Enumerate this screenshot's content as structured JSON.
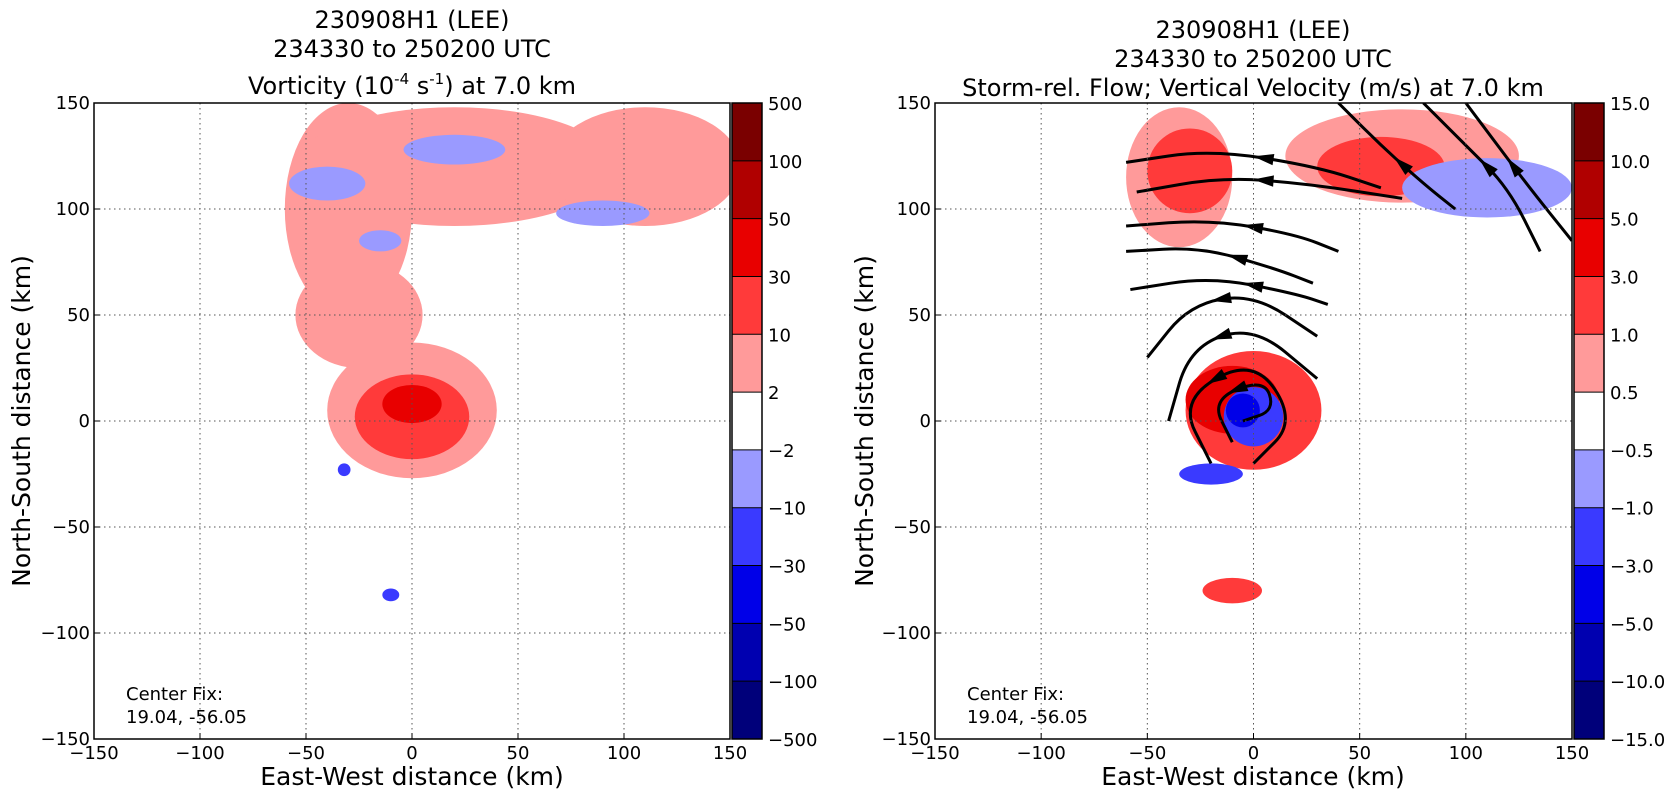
{
  "panels": [
    {
      "title_line1": "230908H1 (LEE)",
      "title_line2": "234330 to 250200 UTC",
      "title_line3_pre": "Vorticity (10",
      "title_line3_sup1": "-4",
      "title_line3_mid": " s",
      "title_line3_sup2": "-1",
      "title_line3_post": ") at 7.0 km",
      "xlabel": "East-West distance (km)",
      "ylabel": "North-South distance (km)",
      "annotation_line1": "Center Fix:",
      "annotation_line2": "19.04, -56.05",
      "colorbar_labels": [
        "500",
        "100",
        "50",
        "30",
        "10",
        "2",
        "−2",
        "−10",
        "−30",
        "−50",
        "−100",
        "−500"
      ]
    },
    {
      "title_line1": "230908H1 (LEE)",
      "title_line2": "234330 to 250200 UTC",
      "title_line3": "Storm-rel. Flow; Vertical Velocity (m/s) at 7.0 km",
      "xlabel": "East-West distance (km)",
      "ylabel": "North-South distance (km)",
      "annotation_line1": "Center Fix:",
      "annotation_line2": "19.04, -56.05",
      "colorbar_labels": [
        "15.0",
        "10.0",
        "5.0",
        "3.0",
        "1.0",
        "0.5",
        "−0.5",
        "−1.0",
        "−3.0",
        "−5.0",
        "−10.0",
        "−15.0"
      ]
    }
  ],
  "colorbar_colors": [
    "#7a0000",
    "#b00000",
    "#e80000",
    "#ff3a3a",
    "#ff9a9a",
    "#ffffff",
    "#9a9aff",
    "#3a3aff",
    "#0000e8",
    "#0000b0",
    "#00007a"
  ],
  "chart_data": [
    {
      "type": "heatmap",
      "title": "230908H1 (LEE) 234330 to 250200 UTC Vorticity (10^-4 s^-1) at 7.0 km",
      "xlabel": "East-West distance (km)",
      "ylabel": "North-South distance (km)",
      "xlim": [
        -150,
        150
      ],
      "ylim": [
        -150,
        150
      ],
      "xticks": [
        "−150",
        "−100",
        "−50",
        "0",
        "50",
        "100",
        "150"
      ],
      "yticks": [
        "−150",
        "−100",
        "−50",
        "0",
        "50",
        "100",
        "150"
      ],
      "grid": true,
      "levels": [
        -500,
        -100,
        -50,
        -30,
        -10,
        -2,
        2,
        10,
        30,
        50,
        100,
        500
      ],
      "center": [
        0,
        5
      ],
      "features": [
        {
          "label": "light-red",
          "level": 1,
          "cx": -30,
          "cy": 100,
          "rx": 30,
          "ry": 50
        },
        {
          "label": "light-red",
          "level": 1,
          "cx": 20,
          "cy": 120,
          "rx": 75,
          "ry": 28
        },
        {
          "label": "light-red",
          "level": 1,
          "cx": 110,
          "cy": 120,
          "rx": 45,
          "ry": 28
        },
        {
          "label": "light-red",
          "level": 1,
          "cx": -25,
          "cy": 50,
          "rx": 30,
          "ry": 25
        },
        {
          "label": "light-red",
          "level": 1,
          "cx": 0,
          "cy": 5,
          "rx": 40,
          "ry": 32
        },
        {
          "label": "mid-red",
          "level": 2,
          "cx": 0,
          "cy": 2,
          "rx": 27,
          "ry": 20
        },
        {
          "label": "strong-red",
          "level": 3,
          "cx": 0,
          "cy": 8,
          "rx": 14,
          "ry": 9
        },
        {
          "label": "light-blue",
          "level": -1,
          "cx": 20,
          "cy": 128,
          "rx": 24,
          "ry": 7
        },
        {
          "label": "light-blue",
          "level": -1,
          "cx": -40,
          "cy": 112,
          "rx": 18,
          "ry": 8
        },
        {
          "label": "light-blue",
          "level": -1,
          "cx": 90,
          "cy": 98,
          "rx": 22,
          "ry": 6
        },
        {
          "label": "light-blue",
          "level": -1,
          "cx": -15,
          "cy": 85,
          "rx": 10,
          "ry": 5
        },
        {
          "label": "mid-blue",
          "level": -2,
          "cx": -10,
          "cy": -82,
          "rx": 4,
          "ry": 3
        },
        {
          "label": "mid-blue",
          "level": -2,
          "cx": -32,
          "cy": -23,
          "rx": 3,
          "ry": 3
        }
      ]
    },
    {
      "type": "heatmap",
      "title": "230908H1 (LEE) 234330 to 250200 UTC Storm-rel. Flow; Vertical Velocity (m/s) at 7.0 km",
      "xlabel": "East-West distance (km)",
      "ylabel": "North-South distance (km)",
      "xlim": [
        -150,
        150
      ],
      "ylim": [
        -150,
        150
      ],
      "xticks": [
        "−150",
        "−100",
        "−50",
        "0",
        "50",
        "100",
        "150"
      ],
      "yticks": [
        "−150",
        "−100",
        "−50",
        "0",
        "50",
        "100",
        "150"
      ],
      "grid": true,
      "levels": [
        -15.0,
        -10.0,
        -5.0,
        -3.0,
        -1.0,
        -0.5,
        0.5,
        1.0,
        3.0,
        5.0,
        10.0,
        15.0
      ],
      "center": [
        0,
        5
      ],
      "features": [
        {
          "label": "light-red",
          "level": 1,
          "cx": -35,
          "cy": 115,
          "rx": 25,
          "ry": 33
        },
        {
          "label": "light-red",
          "level": 1,
          "cx": 70,
          "cy": 125,
          "rx": 55,
          "ry": 22
        },
        {
          "label": "mid-red",
          "level": 2,
          "cx": -30,
          "cy": 118,
          "rx": 20,
          "ry": 20
        },
        {
          "label": "mid-red",
          "level": 2,
          "cx": 60,
          "cy": 120,
          "rx": 30,
          "ry": 14
        },
        {
          "label": "mid-red",
          "level": 2,
          "cx": 0,
          "cy": 5,
          "rx": 32,
          "ry": 28
        },
        {
          "label": "strong-red",
          "level": 3,
          "cx": -10,
          "cy": 10,
          "rx": 22,
          "ry": 16
        },
        {
          "label": "light-blue",
          "level": -1,
          "cx": 110,
          "cy": 110,
          "rx": 40,
          "ry": 14
        },
        {
          "label": "mid-blue",
          "level": -2,
          "cx": 0,
          "cy": 2,
          "rx": 14,
          "ry": 14
        },
        {
          "label": "strong-blue",
          "level": -3,
          "cx": -5,
          "cy": 5,
          "rx": 8,
          "ry": 8
        },
        {
          "label": "mid-blue",
          "level": -2,
          "cx": -20,
          "cy": -25,
          "rx": 15,
          "ry": 5
        },
        {
          "label": "mid-red",
          "level": 2,
          "cx": -10,
          "cy": -80,
          "rx": 14,
          "ry": 6
        }
      ],
      "streamlines": [
        [
          [
            -60,
            122
          ],
          [
            -20,
            128
          ],
          [
            30,
            120
          ],
          [
            60,
            110
          ]
        ],
        [
          [
            -55,
            108
          ],
          [
            -15,
            115
          ],
          [
            25,
            112
          ],
          [
            70,
            105
          ]
        ],
        [
          [
            -60,
            92
          ],
          [
            -20,
            95
          ],
          [
            20,
            88
          ],
          [
            40,
            80
          ]
        ],
        [
          [
            -60,
            80
          ],
          [
            -25,
            82
          ],
          [
            10,
            72
          ],
          [
            28,
            65
          ]
        ],
        [
          [
            -58,
            62
          ],
          [
            -20,
            68
          ],
          [
            20,
            60
          ],
          [
            35,
            55
          ]
        ],
        [
          [
            -50,
            30
          ],
          [
            -30,
            55
          ],
          [
            0,
            60
          ],
          [
            30,
            40
          ]
        ],
        [
          [
            -40,
            0
          ],
          [
            -30,
            35
          ],
          [
            0,
            45
          ],
          [
            30,
            20
          ]
        ],
        [
          [
            -20,
            -20
          ],
          [
            -35,
            10
          ],
          [
            0,
            30
          ],
          [
            20,
            0
          ],
          [
            0,
            -20
          ]
        ],
        [
          [
            -10,
            -10
          ],
          [
            -20,
            10
          ],
          [
            5,
            20
          ],
          [
            10,
            5
          ],
          [
            -5,
            0
          ]
        ],
        [
          [
            80,
            150
          ],
          [
            100,
            130
          ],
          [
            120,
            110
          ],
          [
            135,
            80
          ]
        ],
        [
          [
            100,
            150
          ],
          [
            115,
            130
          ],
          [
            130,
            110
          ],
          [
            150,
            85
          ]
        ],
        [
          [
            40,
            150
          ],
          [
            60,
            130
          ],
          [
            80,
            112
          ],
          [
            95,
            100
          ]
        ]
      ]
    }
  ]
}
